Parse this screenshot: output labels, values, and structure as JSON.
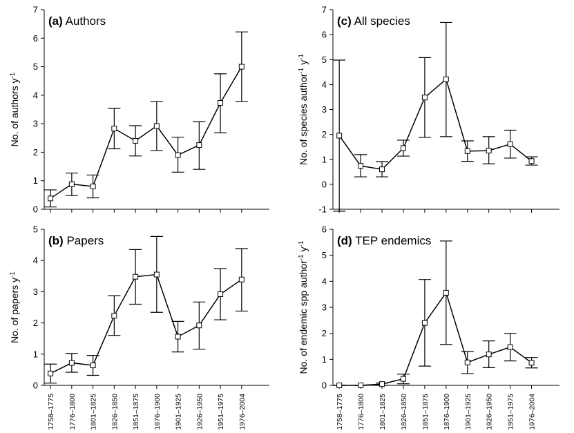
{
  "chart_data": [
    {
      "type": "line",
      "panel_letter": "(a)",
      "panel_label": "Authors",
      "ylabel": "No. of authors y",
      "ylabel_sup": "-1",
      "ylim": [
        0,
        7
      ],
      "yticks": [
        0,
        1,
        2,
        3,
        4,
        5,
        6,
        7
      ],
      "categories": [
        "1758–1775",
        "1776–1800",
        "1801–1825",
        "1826–1850",
        "1851–1875",
        "1876–1900",
        "1901–1925",
        "1926–1950",
        "1951–1975",
        "1976–2004"
      ],
      "show_x_tick_labels": false,
      "values": [
        0.38,
        0.88,
        0.8,
        2.83,
        2.4,
        2.92,
        1.9,
        2.25,
        3.73,
        5.0
      ],
      "err_low": [
        0.08,
        0.48,
        0.4,
        2.12,
        1.87,
        2.06,
        1.3,
        1.4,
        2.68,
        3.78
      ],
      "err_high": [
        0.68,
        1.27,
        1.2,
        3.54,
        2.93,
        3.78,
        2.53,
        3.07,
        4.75,
        6.22
      ]
    },
    {
      "type": "line",
      "panel_letter": "(b)",
      "panel_label": "Papers",
      "ylabel": "No. of papers y",
      "ylabel_sup": "-1",
      "ylim": [
        0,
        5
      ],
      "yticks": [
        0,
        1,
        2,
        3,
        4,
        5
      ],
      "categories": [
        "1758–1775",
        "1776–1800",
        "1801–1825",
        "1826–1850",
        "1851–1875",
        "1876–1900",
        "1901–1925",
        "1926–1950",
        "1951–1975",
        "1976–2004"
      ],
      "show_x_tick_labels": true,
      "values": [
        0.38,
        0.72,
        0.64,
        2.23,
        3.48,
        3.55,
        1.56,
        1.92,
        2.92,
        3.39
      ],
      "err_low": [
        0.07,
        0.42,
        0.32,
        1.6,
        2.6,
        2.34,
        1.07,
        1.16,
        2.1,
        2.38
      ],
      "err_high": [
        0.68,
        1.02,
        0.96,
        2.87,
        4.35,
        4.77,
        2.05,
        2.67,
        3.74,
        4.38
      ]
    },
    {
      "type": "line",
      "panel_letter": "(c)",
      "panel_label": "All species",
      "ylabel": "No. of species author",
      "ylabel_sup": "-1",
      "ylabel_tail": " y",
      "ylabel_sup2": "-1",
      "ylim": [
        -1,
        7
      ],
      "yticks": [
        -1,
        0,
        1,
        2,
        3,
        4,
        5,
        6,
        7
      ],
      "categories": [
        "1758–1775",
        "1776–1800",
        "1801–1825",
        "1826–1850",
        "1851–1875",
        "1876–1900",
        "1901–1925",
        "1926–1950",
        "1951–1975",
        "1976–2004"
      ],
      "show_x_tick_labels": false,
      "values": [
        1.95,
        0.74,
        0.6,
        1.45,
        3.48,
        4.21,
        1.33,
        1.35,
        1.61,
        0.93
      ],
      "err_low": [
        -1.08,
        0.3,
        0.3,
        1.13,
        1.88,
        1.91,
        0.92,
        0.82,
        1.05,
        0.77
      ],
      "err_high": [
        4.98,
        1.19,
        0.91,
        1.77,
        5.08,
        6.49,
        1.74,
        1.91,
        2.17,
        1.1
      ]
    },
    {
      "type": "line",
      "panel_letter": "(d)",
      "panel_label": "TEP endemics",
      "ylabel": "No. of endemic spp author",
      "ylabel_sup": "-1",
      "ylabel_tail": " y",
      "ylabel_sup2": "-1",
      "ylim": [
        0,
        6
      ],
      "yticks": [
        0,
        1,
        2,
        3,
        4,
        5,
        6
      ],
      "categories": [
        "1758–1775",
        "1776–1800",
        "1801–1825",
        "1826–1850",
        "1851–1875",
        "1876–1900",
        "1901–1925",
        "1926–1950",
        "1951–1975",
        "1976–2004"
      ],
      "show_x_tick_labels": true,
      "values": [
        0.0,
        0.0,
        0.05,
        0.25,
        2.4,
        3.56,
        0.88,
        1.19,
        1.47,
        0.87
      ],
      "err_low": [
        0.0,
        0.0,
        0.0,
        0.06,
        0.74,
        1.57,
        0.45,
        0.68,
        0.94,
        0.67
      ],
      "err_high": [
        0.0,
        0.0,
        0.09,
        0.43,
        4.07,
        5.55,
        1.3,
        1.71,
        2.0,
        1.07
      ]
    }
  ]
}
